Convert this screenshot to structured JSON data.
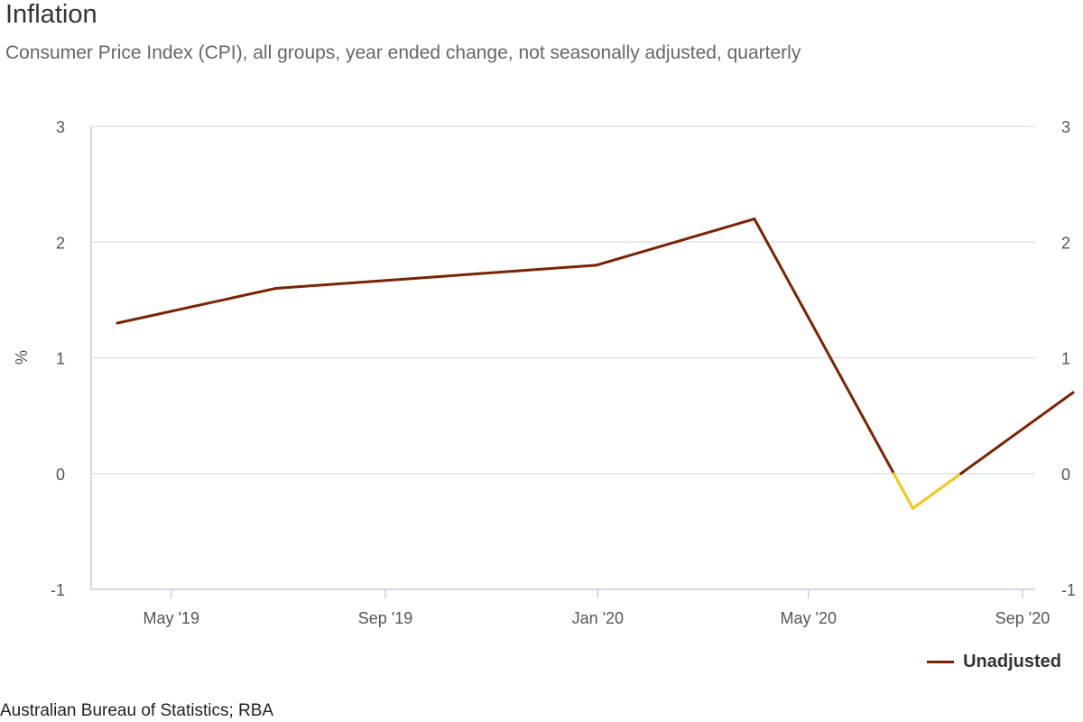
{
  "header": {
    "title": "Inflation",
    "subtitle": "Consumer Price Index (CPI), all groups, year ended change, not seasonally adjusted, quarterly"
  },
  "footer": {
    "source": "Australian Bureau of Statistics; RBA"
  },
  "colors": {
    "series": "#7a2302",
    "negative": "#f5c518",
    "grid": "#dde3e8",
    "axis": "#c8d0d8"
  },
  "chart_data": {
    "type": "line",
    "ylabel": "%",
    "ylim": [
      -1,
      3
    ],
    "yticks": [
      3,
      2,
      1,
      0,
      -1
    ],
    "xticks": [
      {
        "label": "May '19",
        "date": "2019-05-01"
      },
      {
        "label": "Sep '19",
        "date": "2019-09-01"
      },
      {
        "label": "Jan '20",
        "date": "2020-01-01"
      },
      {
        "label": "May '20",
        "date": "2020-05-01"
      },
      {
        "label": "Sep '20",
        "date": "2020-09-01"
      }
    ],
    "xlim": [
      "2019-03-16",
      "2020-09-01"
    ],
    "series": [
      {
        "name": "Unadjusted",
        "points": [
          {
            "date": "2019-03-31",
            "value": 1.3
          },
          {
            "date": "2019-06-30",
            "value": 1.6
          },
          {
            "date": "2019-09-30",
            "value": 1.7
          },
          {
            "date": "2019-12-31",
            "value": 1.8
          },
          {
            "date": "2020-03-31",
            "value": 2.2
          },
          {
            "date": "2020-06-30",
            "value": -0.3
          },
          {
            "date": "2020-09-30",
            "value": 0.7
          }
        ]
      }
    ],
    "legend": "bottom-right"
  }
}
